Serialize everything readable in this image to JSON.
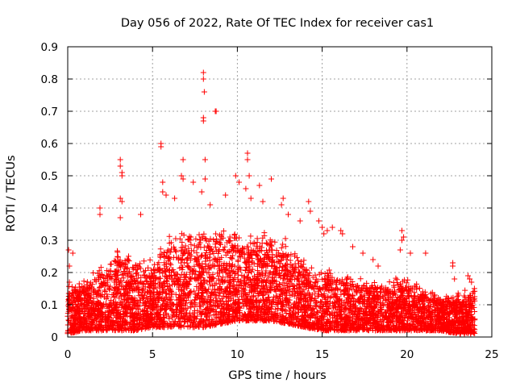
{
  "chart_data": {
    "type": "scatter",
    "title": "Day 056 of 2022, Rate Of TEC Index for receiver cas1",
    "xlabel": "GPS time / hours",
    "ylabel": "ROTI / TECUs",
    "xlim": [
      0,
      25
    ],
    "ylim": [
      0,
      0.9
    ],
    "xticks": [
      "0",
      "5",
      "10",
      "15",
      "20",
      "25"
    ],
    "yticks": [
      "0",
      "0.1",
      "0.2",
      "0.3",
      "0.4",
      "0.5",
      "0.6",
      "0.7",
      "0.8",
      "0.9"
    ],
    "grid": true,
    "marker": "+",
    "series": [
      {
        "name": "ROTI",
        "color": "#ff0000",
        "points": [
          [
            0.05,
            0.27
          ],
          [
            0.1,
            0.22
          ],
          [
            0.1,
            0.17
          ],
          [
            0.3,
            0.26
          ],
          [
            1.9,
            0.4
          ],
          [
            1.9,
            0.38
          ],
          [
            3.1,
            0.55
          ],
          [
            3.1,
            0.53
          ],
          [
            3.2,
            0.51
          ],
          [
            3.2,
            0.5
          ],
          [
            3.1,
            0.43
          ],
          [
            3.2,
            0.42
          ],
          [
            3.1,
            0.37
          ],
          [
            4.3,
            0.38
          ],
          [
            5.5,
            0.6
          ],
          [
            5.5,
            0.59
          ],
          [
            5.6,
            0.48
          ],
          [
            5.6,
            0.45
          ],
          [
            5.8,
            0.44
          ],
          [
            6.3,
            0.43
          ],
          [
            6.8,
            0.55
          ],
          [
            6.7,
            0.5
          ],
          [
            6.8,
            0.49
          ],
          [
            7.4,
            0.48
          ],
          [
            8.0,
            0.82
          ],
          [
            8.0,
            0.8
          ],
          [
            8.05,
            0.76
          ],
          [
            8.0,
            0.68
          ],
          [
            8.0,
            0.67
          ],
          [
            8.1,
            0.55
          ],
          [
            8.1,
            0.49
          ],
          [
            7.9,
            0.45
          ],
          [
            8.4,
            0.41
          ],
          [
            8.7,
            0.7
          ],
          [
            8.75,
            0.7
          ],
          [
            9.3,
            0.44
          ],
          [
            9.9,
            0.5
          ],
          [
            10.1,
            0.48
          ],
          [
            10.6,
            0.57
          ],
          [
            10.6,
            0.55
          ],
          [
            10.7,
            0.5
          ],
          [
            10.5,
            0.46
          ],
          [
            10.8,
            0.43
          ],
          [
            11.3,
            0.47
          ],
          [
            11.5,
            0.42
          ],
          [
            12.0,
            0.49
          ],
          [
            12.7,
            0.43
          ],
          [
            12.6,
            0.41
          ],
          [
            13.0,
            0.38
          ],
          [
            13.7,
            0.36
          ],
          [
            14.2,
            0.42
          ],
          [
            14.3,
            0.39
          ],
          [
            14.8,
            0.36
          ],
          [
            15.0,
            0.34
          ],
          [
            15.1,
            0.32
          ],
          [
            15.3,
            0.33
          ],
          [
            15.6,
            0.34
          ],
          [
            16.1,
            0.33
          ],
          [
            16.2,
            0.32
          ],
          [
            16.8,
            0.28
          ],
          [
            17.4,
            0.26
          ],
          [
            18.0,
            0.24
          ],
          [
            18.3,
            0.22
          ],
          [
            19.6,
            0.27
          ],
          [
            19.7,
            0.3
          ],
          [
            19.7,
            0.33
          ],
          [
            19.8,
            0.31
          ],
          [
            20.2,
            0.26
          ],
          [
            21.1,
            0.26
          ],
          [
            22.7,
            0.23
          ],
          [
            22.7,
            0.22
          ],
          [
            22.8,
            0.18
          ],
          [
            23.6,
            0.19
          ],
          [
            23.7,
            0.18
          ],
          [
            23.8,
            0.17
          ]
        ],
        "density_envelope": {
          "x": [
            0,
            1,
            2,
            3,
            4,
            5,
            6,
            7,
            8,
            9,
            10,
            11,
            12,
            13,
            14,
            15,
            16,
            17,
            18,
            19,
            20,
            21,
            22,
            23,
            24
          ],
          "upper": [
            0.15,
            0.16,
            0.2,
            0.25,
            0.22,
            0.22,
            0.28,
            0.3,
            0.3,
            0.3,
            0.3,
            0.29,
            0.3,
            0.27,
            0.22,
            0.19,
            0.18,
            0.17,
            0.16,
            0.16,
            0.17,
            0.14,
            0.12,
            0.12,
            0.14
          ],
          "lower": [
            0.01,
            0.02,
            0.02,
            0.02,
            0.02,
            0.03,
            0.03,
            0.03,
            0.03,
            0.04,
            0.05,
            0.05,
            0.05,
            0.04,
            0.03,
            0.02,
            0.02,
            0.02,
            0.02,
            0.02,
            0.02,
            0.02,
            0.02,
            0.01,
            0.01
          ]
        }
      }
    ]
  }
}
